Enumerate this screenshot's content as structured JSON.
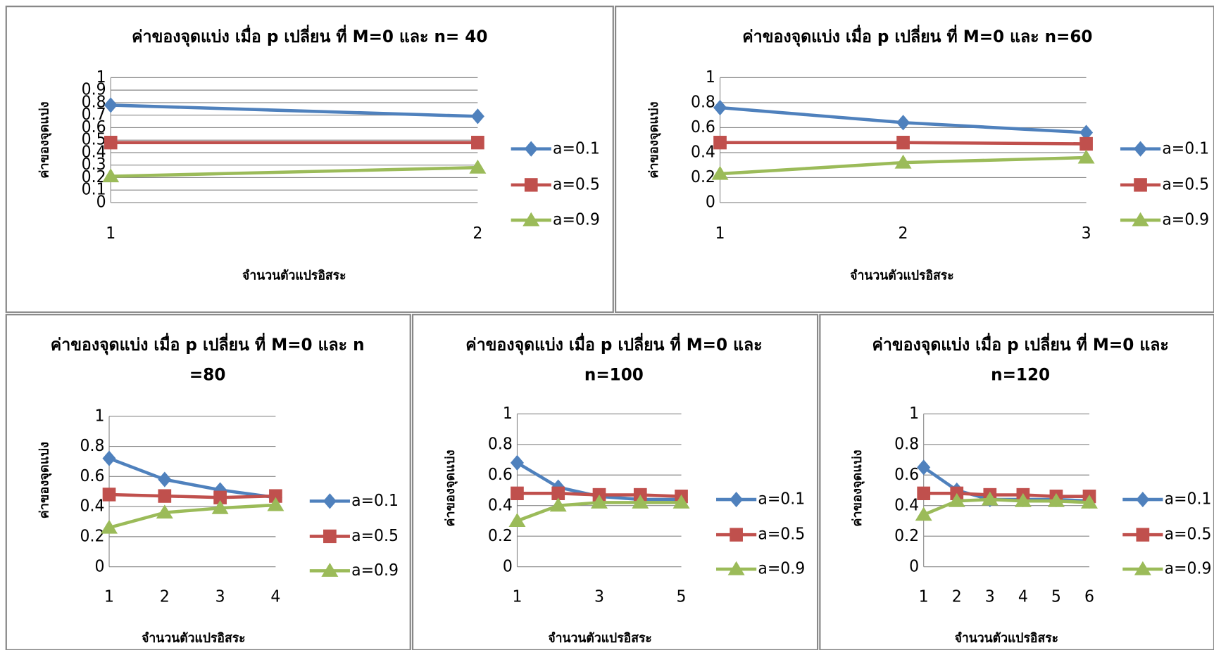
{
  "chart_data": [
    {
      "type": "line",
      "title": [
        "ค่าของจุดแบ่ง เมื่อ p เปลี่ยน ที่ M=0 และ n= 40"
      ],
      "x_label": "จำนวนตัวแปรอิสระ",
      "y_label": "ค่าของจุดแบ่ง",
      "categories": [
        "1",
        "2"
      ],
      "series": [
        {
          "name": "a=0.1",
          "color": "#4f81bd",
          "marker": "diamond",
          "values": [
            0.78,
            0.69
          ]
        },
        {
          "name": "a=0.5",
          "color": "#c0504d",
          "marker": "square",
          "values": [
            0.48,
            0.48
          ]
        },
        {
          "name": "a=0.9",
          "color": "#9bbb59",
          "marker": "triangle",
          "values": [
            0.21,
            0.28
          ]
        }
      ],
      "ylim": [
        0,
        1
      ],
      "yticks": [
        0,
        0.1,
        0.2,
        0.3,
        0.4,
        0.5,
        0.6,
        0.7,
        0.8,
        0.9,
        1
      ],
      "grid": true,
      "legend": "right"
    },
    {
      "type": "line",
      "title": [
        "ค่าของจุดแบ่ง เมื่อ p เปลี่ยน ที่ M=0 และ n=60"
      ],
      "x_label": "จำนวนตัวแปรอิสระ",
      "y_label": "ค่าของจุดแบ่ง",
      "categories": [
        "1",
        "2",
        "3"
      ],
      "series": [
        {
          "name": "a=0.1",
          "color": "#4f81bd",
          "marker": "diamond",
          "values": [
            0.76,
            0.64,
            0.56
          ]
        },
        {
          "name": "a=0.5",
          "color": "#c0504d",
          "marker": "square",
          "values": [
            0.48,
            0.48,
            0.47
          ]
        },
        {
          "name": "a=0.9",
          "color": "#9bbb59",
          "marker": "triangle",
          "values": [
            0.23,
            0.32,
            0.36
          ]
        }
      ],
      "ylim": [
        0,
        1
      ],
      "yticks": [
        0,
        0.2,
        0.4,
        0.6,
        0.8,
        1
      ],
      "grid": true,
      "legend": "right"
    },
    {
      "type": "line",
      "title": [
        "ค่าของจุดแบ่ง เมื่อ p เปลี่ยน ที่ M=0 และ n",
        "=80"
      ],
      "x_label": "จำนวนตัวแปรอิสระ",
      "y_label": "ค่าของจุดแบ่ง",
      "categories": [
        "1",
        "2",
        "3",
        "4"
      ],
      "series": [
        {
          "name": "a=0.1",
          "color": "#4f81bd",
          "marker": "diamond",
          "values": [
            0.72,
            0.58,
            0.51,
            0.46
          ]
        },
        {
          "name": "a=0.5",
          "color": "#c0504d",
          "marker": "square",
          "values": [
            0.48,
            0.47,
            0.46,
            0.47
          ]
        },
        {
          "name": "a=0.9",
          "color": "#9bbb59",
          "marker": "triangle",
          "values": [
            0.26,
            0.36,
            0.39,
            0.41
          ]
        }
      ],
      "ylim": [
        0,
        1
      ],
      "yticks": [
        0,
        0.2,
        0.4,
        0.6,
        0.8,
        1
      ],
      "grid": true,
      "legend": "right"
    },
    {
      "type": "line",
      "title": [
        "ค่าของจุดแบ่ง เมื่อ p เปลี่ยน ที่ M=0 และ",
        "n=100"
      ],
      "x_label": "จำนวนตัวแปรอิสระ",
      "y_label": "ค่าของจุดแบ่ง",
      "categories": [
        "1",
        null,
        "3",
        null,
        "5"
      ],
      "series": [
        {
          "name": "a=0.1",
          "color": "#4f81bd",
          "marker": "diamond",
          "values": [
            0.68,
            0.52,
            0.46,
            0.44,
            0.44
          ]
        },
        {
          "name": "a=0.5",
          "color": "#c0504d",
          "marker": "square",
          "values": [
            0.48,
            0.48,
            0.47,
            0.47,
            0.46
          ]
        },
        {
          "name": "a=0.9",
          "color": "#9bbb59",
          "marker": "triangle",
          "values": [
            0.3,
            0.4,
            0.42,
            0.42,
            0.42
          ]
        }
      ],
      "ylim": [
        0,
        1
      ],
      "yticks": [
        0,
        0.2,
        0.4,
        0.6,
        0.8,
        1
      ],
      "grid": true,
      "legend": "right"
    },
    {
      "type": "line",
      "title": [
        "ค่าของจุดแบ่ง เมื่อ p เปลี่ยน ที่ M=0 และ",
        "n=120"
      ],
      "x_label": "จำนวนตัวแปรอิสระ",
      "y_label": "ค่าของจุดแบ่ง",
      "categories": [
        "1",
        "2",
        "3",
        "4",
        "5",
        "6"
      ],
      "series": [
        {
          "name": "a=0.1",
          "color": "#4f81bd",
          "marker": "diamond",
          "values": [
            0.65,
            0.5,
            0.44,
            0.44,
            0.44,
            0.43
          ]
        },
        {
          "name": "a=0.5",
          "color": "#c0504d",
          "marker": "square",
          "values": [
            0.48,
            0.48,
            0.47,
            0.47,
            0.46,
            0.46
          ]
        },
        {
          "name": "a=0.9",
          "color": "#9bbb59",
          "marker": "triangle",
          "values": [
            0.34,
            0.43,
            0.44,
            0.43,
            0.43,
            0.42
          ]
        }
      ],
      "ylim": [
        0,
        1
      ],
      "yticks": [
        0,
        0.2,
        0.4,
        0.6,
        0.8,
        1
      ],
      "grid": true,
      "legend": "right"
    }
  ]
}
